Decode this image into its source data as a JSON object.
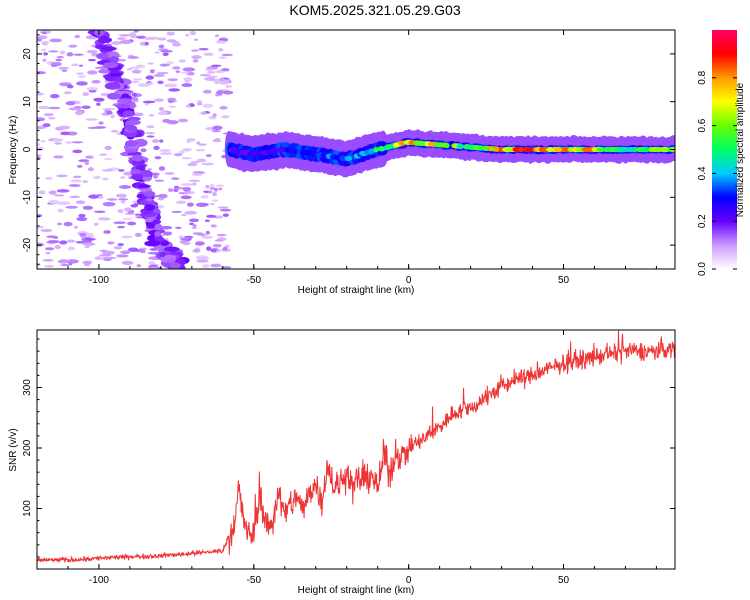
{
  "title": "KOM5.2025.321.05.29.G03",
  "chart_data": [
    {
      "type": "heatmap",
      "name": "spectrogram",
      "xlabel": "Height of straight line (km)",
      "ylabel": "Frequency (Hz)",
      "xlim": [
        -120,
        86
      ],
      "ylim": [
        -25,
        25
      ],
      "xticks": [
        -100,
        -50,
        0,
        50
      ],
      "yticks": [
        -20,
        -10,
        0,
        10,
        20
      ],
      "colorbar": {
        "label": "Normalized spectral amplitude",
        "range": [
          0,
          1
        ],
        "ticks": [
          0.0,
          0.2,
          0.4,
          0.6,
          0.8
        ],
        "tick_labels": [
          "0.0",
          "0.2",
          "0.4",
          "0.6",
          "0.8"
        ],
        "stops": [
          "#ffffff",
          "#cc99ff",
          "#6600ff",
          "#0000ff",
          "#00ccff",
          "#00ff66",
          "#66ff00",
          "#ffff00",
          "#ff9900",
          "#ff0000",
          "#ff0066"
        ]
      },
      "features": [
        {
          "name": "signal-band",
          "x": [
            -58,
            -50,
            -40,
            -30,
            -20,
            -10,
            0,
            10,
            20,
            30,
            40,
            50,
            60,
            70,
            86
          ],
          "freq": [
            0,
            -1,
            0,
            -1,
            -2,
            0,
            1.5,
            1,
            0.5,
            0,
            0,
            0,
            0,
            0,
            0
          ],
          "amplitude": [
            0.2,
            0.25,
            0.3,
            0.35,
            0.4,
            0.5,
            0.8,
            0.75,
            0.6,
            0.85,
            0.9,
            0.9,
            0.8,
            0.5,
            0.7
          ]
        },
        {
          "name": "noise-streak",
          "x": [
            -100,
            -92,
            -84,
            -78,
            -74
          ],
          "freq": [
            25,
            10,
            -12,
            -22,
            -25
          ],
          "amplitude": [
            0.15,
            0.15,
            0.15,
            0.15,
            0.15
          ]
        }
      ]
    },
    {
      "type": "line",
      "name": "snr",
      "xlabel": "Height of straight line (km)",
      "ylabel": "SNR (v/v)",
      "xlim": [
        -120,
        86
      ],
      "ylim": [
        0,
        395
      ],
      "xticks": [
        -100,
        -50,
        0,
        50
      ],
      "yticks": [
        100,
        200,
        300
      ],
      "color": "#ee3333",
      "series": [
        {
          "name": "SNR",
          "x": [
            -120,
            -110,
            -100,
            -90,
            -80,
            -70,
            -60,
            -56,
            -55,
            -54,
            -52,
            -50,
            -48,
            -46,
            -44,
            -42,
            -40,
            -38,
            -36,
            -34,
            -32,
            -30,
            -28,
            -26,
            -24,
            -22,
            -20,
            -18,
            -16,
            -14,
            -12,
            -10,
            -8,
            -6,
            -4,
            -2,
            0,
            5,
            10,
            15,
            20,
            25,
            30,
            35,
            40,
            45,
            50,
            55,
            60,
            65,
            70,
            75,
            80,
            86
          ],
          "y": [
            15,
            15,
            18,
            20,
            22,
            26,
            30,
            80,
            140,
            100,
            55,
            60,
            125,
            70,
            75,
            130,
            85,
            110,
            120,
            95,
            130,
            140,
            115,
            175,
            130,
            140,
            165,
            135,
            150,
            145,
            160,
            130,
            190,
            155,
            195,
            185,
            200,
            215,
            235,
            260,
            265,
            285,
            300,
            315,
            320,
            330,
            340,
            345,
            350,
            355,
            360,
            360,
            360,
            365
          ]
        }
      ]
    }
  ]
}
